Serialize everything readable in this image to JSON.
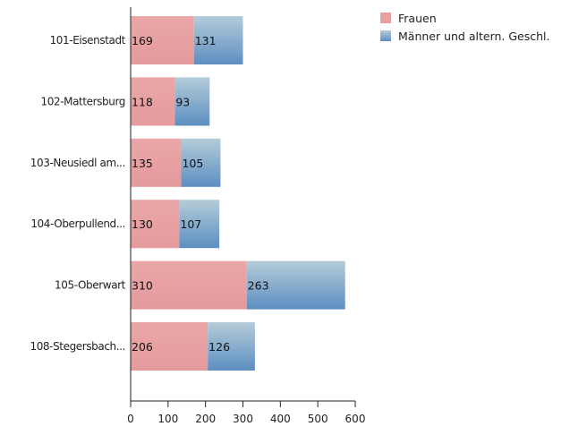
{
  "chart_data": {
    "type": "bar",
    "orientation": "horizontal",
    "stacked": true,
    "categories": [
      "101-Eisenstadt",
      "102-Mattersburg",
      "103-Neusiedl am...",
      "104-Oberpullend...",
      "105-Oberwart",
      "108-Stegersbach..."
    ],
    "series": [
      {
        "name": "Frauen",
        "values": [
          169,
          118,
          135,
          130,
          310,
          206
        ]
      },
      {
        "name": "Männer und altern. Geschl.",
        "values": [
          131,
          93,
          105,
          107,
          263,
          126
        ]
      }
    ],
    "xticks": [
      "0",
      "100",
      "200",
      "300",
      "400",
      "500",
      "600"
    ],
    "xlim": [
      0,
      600
    ],
    "grid": false,
    "legend_position": "top-right",
    "colors": {
      "Frauen": "#e8a1a3",
      "Männer_top": "#b4ccd8",
      "Männer_bottom": "#5d8fc2"
    }
  }
}
